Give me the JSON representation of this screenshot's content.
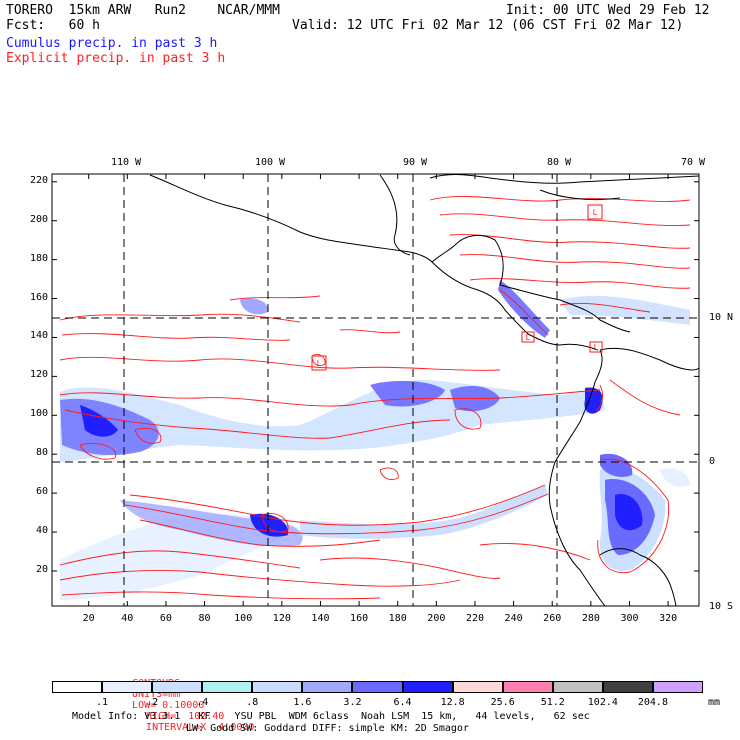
{
  "header": {
    "model": "TORERO  15km ARW   Run2    NCAR/MMM",
    "init": "Init: 00 UTC Wed 29 Feb 12",
    "fcst": "Fcst:   60 h",
    "valid": "Valid: 12 UTC Fri 02 Mar 12 (06 CST Fri 02 Mar 12)",
    "field1": "Cumulus precip. in past 3 h",
    "field2": "Explicit precip. in past 3 h"
  },
  "axes": {
    "top_labels": [
      "110 W",
      "100 W",
      "90 W",
      "80 W",
      "70 W"
    ],
    "left_ticks": [
      "220",
      "200",
      "180",
      "160",
      "140",
      "120",
      "100",
      "80",
      "60",
      "40",
      "20"
    ],
    "bottom_ticks": [
      "20",
      "40",
      "60",
      "80",
      "100",
      "120",
      "140",
      "160",
      "180",
      "200",
      "220",
      "240",
      "260",
      "280",
      "300",
      "320"
    ],
    "right_labels": [
      "10 N",
      "0",
      "10 S"
    ]
  },
  "markers": [
    "L",
    "L",
    "L",
    "L"
  ],
  "contour_info": {
    "contours": "CONTOURS:",
    "units": "UNITS=mm",
    "low": "LOW= 0.10000",
    "high": "HIGH=  102.40",
    "interval": "INTERVAL=X  4.0000"
  },
  "colorbar": {
    "values": [
      ".1",
      ".2",
      ".4",
      ".8",
      "1.6",
      "3.2",
      "6.4",
      "12.8",
      "25.6",
      "51.2",
      "102.4",
      "204.8"
    ],
    "colors": [
      "#ffffff",
      "#e6f0ff",
      "#cce0ff",
      "#b0f0f0",
      "#c8dcff",
      "#a0a8ff",
      "#6a6aff",
      "#2020ff",
      "#ffd8d8",
      "#ff80b0",
      "#c0c0c0",
      "#404040",
      "#d0a0ff"
    ],
    "unit": "mm"
  },
  "footer": {
    "line1": "Model Info: V3.3.1   KF    YSU PBL  WDM 6class  Noah LSM  15 km,   44 levels,   62 sec",
    "line2": "LW: Godd SW: Goddard DIFF: simple KM: 2D Smagor"
  }
}
